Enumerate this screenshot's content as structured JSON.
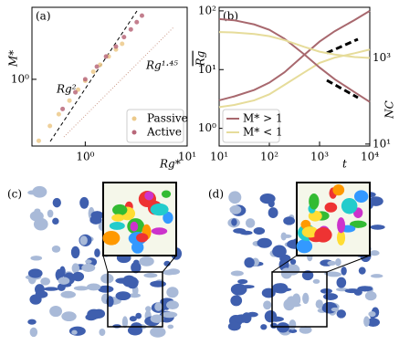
{
  "chart_data": [
    {
      "type": "scatter",
      "panel_label": "(a)",
      "xlabel": "Rg*",
      "ylabel": "M*",
      "xscale": "log",
      "yscale": "log",
      "xlim": [
        0.3,
        10
      ],
      "ylim": [
        0.1,
        12
      ],
      "xticks": [
        {
          "value": 1,
          "label": "10⁰"
        },
        {
          "value": 10,
          "label": "10¹"
        }
      ],
      "yticks": [
        {
          "value": 1,
          "label": "10⁰"
        }
      ],
      "annotations": [
        "Rg²",
        "Rg¹·⁴⁵"
      ],
      "legend": "lower right",
      "series": [
        {
          "name": "Passive",
          "color": "#ecc98a",
          "x": [
            0.35,
            0.45,
            0.55,
            0.7,
            0.85,
            1.0,
            1.2,
            1.4,
            1.7,
            2.0,
            2.3
          ],
          "values": [
            0.12,
            0.2,
            0.3,
            0.48,
            0.7,
            0.95,
            1.3,
            1.65,
            2.2,
            2.8,
            3.4
          ]
        },
        {
          "name": "Active",
          "color": "#b8687a",
          "x": [
            0.6,
            0.8,
            1.0,
            1.3,
            1.6,
            2.0,
            2.4,
            2.8,
            3.2,
            3.6
          ],
          "values": [
            0.36,
            0.64,
            1.0,
            1.55,
            2.2,
            3.1,
            4.3,
            5.6,
            7.2,
            9.0
          ]
        }
      ]
    },
    {
      "type": "line",
      "panel_label": "(b)",
      "xlabel": "t",
      "ylabel": "Rg",
      "y2label": "NC",
      "xscale": "log",
      "yscale": "log",
      "y2scale": "log",
      "xlim": [
        10,
        10000
      ],
      "ylim": [
        0.5,
        115
      ],
      "y2lim": [
        9,
        15000
      ],
      "xticks": [
        {
          "value": 10,
          "label": "10¹"
        },
        {
          "value": 100,
          "label": "10²"
        },
        {
          "value": 1000,
          "label": "10³"
        },
        {
          "value": 10000,
          "label": "10⁴"
        }
      ],
      "yticks": [
        {
          "value": 1,
          "label": "10⁰"
        },
        {
          "value": 10,
          "label": "10¹"
        },
        {
          "value": 100,
          "label": "10²"
        }
      ],
      "y2ticks": [
        {
          "value": 10,
          "label": "10¹"
        },
        {
          "value": 1000,
          "label": "10³"
        }
      ],
      "legend": "lower left",
      "x": [
        10,
        20,
        50,
        100,
        200,
        500,
        1000,
        2000,
        5000,
        10000
      ],
      "series": [
        {
          "name": "M* > 1",
          "color": "#a8686e",
          "values": [
            3,
            3.5,
            4.5,
            6,
            9,
            18,
            30,
            45,
            70,
            100
          ]
        },
        {
          "name": "M* < 1",
          "color": "#e6dc9a",
          "values": [
            2.3,
            2.5,
            3,
            3.8,
            5.5,
            9,
            13,
            16,
            19,
            22
          ]
        },
        {
          "color": "#a8686e",
          "axis": "y2",
          "values": [
            8000,
            7500,
            6000,
            4500,
            2800,
            1200,
            600,
            320,
            160,
            95
          ]
        },
        {
          "color": "#e6dc9a",
          "axis": "y2",
          "values": [
            4000,
            3900,
            3600,
            3200,
            2600,
            1800,
            1400,
            1200,
            1050,
            1000
          ]
        }
      ]
    }
  ],
  "images": [
    {
      "label": "(c)"
    },
    {
      "label": "(d)"
    }
  ]
}
